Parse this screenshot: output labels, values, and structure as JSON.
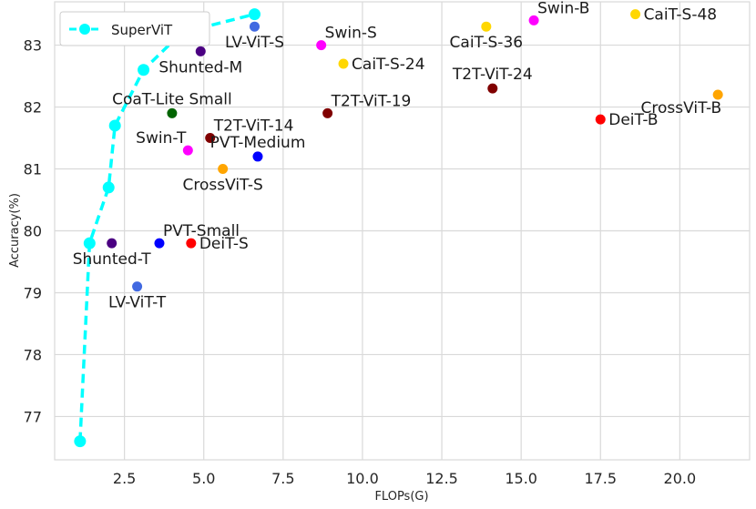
{
  "chart_data": {
    "type": "scatter",
    "xlabel": "FLOPs(G)",
    "ylabel": "Accuracy(%)",
    "xlim": [
      0.3,
      22.2
    ],
    "ylim": [
      76.3,
      83.7
    ],
    "xticks": [
      2.5,
      5.0,
      7.5,
      10.0,
      12.5,
      15.0,
      17.5,
      20.0
    ],
    "xtick_labels": [
      "2.5",
      "5.0",
      "7.5",
      "10.0",
      "12.5",
      "15.0",
      "17.5",
      "20.0"
    ],
    "yticks": [
      77,
      78,
      79,
      80,
      81,
      82,
      83
    ],
    "ytick_labels": [
      "77",
      "78",
      "79",
      "80",
      "81",
      "82",
      "83"
    ],
    "grid": true,
    "legend": {
      "position": "top-left",
      "entries": [
        "SuperViT"
      ]
    },
    "line_series": {
      "name": "SuperViT",
      "color": "#00ffff",
      "style": "dashed",
      "x": [
        1.1,
        1.4,
        2.0,
        2.2,
        3.1,
        4.3,
        6.6
      ],
      "y": [
        76.6,
        79.8,
        80.7,
        81.7,
        82.6,
        83.2,
        83.5
      ]
    },
    "points": [
      {
        "label": "LV-ViT-S",
        "x": 6.6,
        "y": 83.3,
        "color": "#4169e1",
        "label_pos": "below"
      },
      {
        "label": "Shunted-M",
        "x": 4.9,
        "y": 82.9,
        "color": "#4b0082",
        "label_pos": "below"
      },
      {
        "label": "Swin-S",
        "x": 8.7,
        "y": 83.0,
        "color": "#ff00ff",
        "label_pos": "above-right"
      },
      {
        "label": "CaiT-S-24",
        "x": 9.4,
        "y": 82.7,
        "color": "#ffd700",
        "label_pos": "right"
      },
      {
        "label": "CaiT-S-36",
        "x": 13.9,
        "y": 83.3,
        "color": "#ffd700",
        "label_pos": "below"
      },
      {
        "label": "Swin-B",
        "x": 15.4,
        "y": 83.4,
        "color": "#ff00ff",
        "label_pos": "above-right"
      },
      {
        "label": "CaiT-S-48",
        "x": 18.6,
        "y": 83.5,
        "color": "#ffd700",
        "label_pos": "right"
      },
      {
        "label": "T2T-ViT-24",
        "x": 14.1,
        "y": 82.3,
        "color": "#800000",
        "label_pos": "above"
      },
      {
        "label": "CrossViT-B",
        "x": 21.2,
        "y": 82.2,
        "color": "#ffa500",
        "label_pos": "below-left"
      },
      {
        "label": "DeiT-B",
        "x": 17.5,
        "y": 81.8,
        "color": "#ff0000",
        "label_pos": "right"
      },
      {
        "label": "T2T-ViT-19",
        "x": 8.9,
        "y": 81.9,
        "color": "#800000",
        "label_pos": "above-right"
      },
      {
        "label": "CoaT-Lite Small",
        "x": 4.0,
        "y": 81.9,
        "color": "#006400",
        "label_pos": "above"
      },
      {
        "label": "T2T-ViT-14",
        "x": 5.2,
        "y": 81.5,
        "color": "#800000",
        "label_pos": "above-right"
      },
      {
        "label": "Swin-T",
        "x": 4.5,
        "y": 81.3,
        "color": "#ff00ff",
        "label_pos": "above-left"
      },
      {
        "label": "PVT-Medium",
        "x": 6.7,
        "y": 81.2,
        "color": "#0000ff",
        "label_pos": "above"
      },
      {
        "label": "CrossViT-S",
        "x": 5.6,
        "y": 81.0,
        "color": "#ffa500",
        "label_pos": "below"
      },
      {
        "label": "Shunted-T",
        "x": 2.1,
        "y": 79.8,
        "color": "#4b0082",
        "label_pos": "below"
      },
      {
        "label": "PVT-Small",
        "x": 3.6,
        "y": 79.8,
        "color": "#0000ff",
        "label_pos": "above-right"
      },
      {
        "label": "DeiT-S",
        "x": 4.6,
        "y": 79.8,
        "color": "#ff0000",
        "label_pos": "right"
      },
      {
        "label": "LV-ViT-T",
        "x": 2.9,
        "y": 79.1,
        "color": "#4169e1",
        "label_pos": "below"
      }
    ]
  }
}
